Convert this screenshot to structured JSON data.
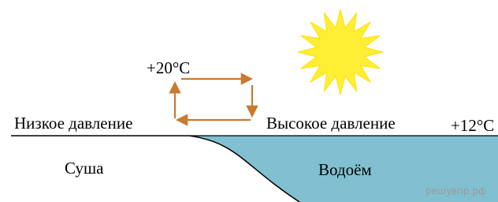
{
  "labels": {
    "warm_temperature": "+20°C",
    "low_pressure": "Низкое давление",
    "high_pressure": "Высокое давление",
    "cool_temperature": "+12°C",
    "land": "Суша",
    "water": "Водоём",
    "watermark": "решувпр.рф"
  }
}
